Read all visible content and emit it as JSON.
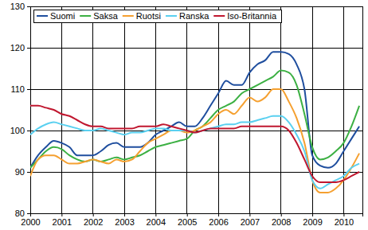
{
  "chart_data": {
    "type": "line",
    "x": [
      2000,
      2000.25,
      2000.5,
      2000.75,
      2001,
      2001.25,
      2001.5,
      2001.75,
      2002,
      2002.25,
      2002.5,
      2002.75,
      2003,
      2003.25,
      2003.5,
      2003.75,
      2004,
      2004.25,
      2004.5,
      2004.75,
      2005,
      2005.25,
      2005.5,
      2005.75,
      2006,
      2006.25,
      2006.5,
      2006.75,
      2007,
      2007.25,
      2007.5,
      2007.75,
      2008,
      2008.25,
      2008.5,
      2008.75,
      2009,
      2009.25,
      2009.5,
      2009.75,
      2010,
      2010.25,
      2010.5
    ],
    "series": [
      {
        "name": "Suomi",
        "color": "#1f4e9e",
        "values": [
          91,
          94,
          96,
          97.5,
          97,
          96,
          94,
          94,
          94,
          95,
          96.5,
          97,
          96,
          96,
          96,
          97,
          99,
          100,
          101,
          102,
          101,
          101,
          103,
          106,
          109,
          112,
          111,
          111,
          114,
          116,
          117,
          119,
          119,
          118.5,
          116,
          110,
          94,
          91.5,
          91,
          92,
          95,
          98,
          101
        ]
      },
      {
        "name": "Saksa",
        "color": "#3cb043",
        "values": [
          91,
          93,
          95,
          96,
          95.5,
          94,
          93,
          92.5,
          93,
          92.5,
          93,
          93.5,
          93,
          93.5,
          94,
          95,
          96,
          96.5,
          97,
          97.5,
          98,
          100,
          101,
          103,
          105,
          106,
          107,
          109,
          110,
          111,
          112,
          113,
          114.5,
          114,
          111,
          104,
          96,
          93,
          93.5,
          95,
          97,
          101,
          106
        ]
      },
      {
        "name": "Ruotsi",
        "color": "#f5a030",
        "values": [
          89,
          93,
          94,
          94,
          93,
          92,
          92,
          92.5,
          93,
          92.5,
          92,
          93,
          92.5,
          93,
          95,
          97,
          98,
          99,
          100,
          100,
          99.5,
          100,
          101,
          102,
          104,
          105,
          104,
          106,
          108,
          107,
          108,
          110,
          110,
          107,
          103,
          97,
          88,
          85,
          85,
          86,
          88,
          91,
          94.5
        ]
      },
      {
        "name": "Ranska",
        "color": "#5ad0f0",
        "values": [
          99,
          100.5,
          101.5,
          102,
          101.5,
          101,
          100.5,
          100,
          100,
          100.5,
          100,
          99.5,
          99,
          99.5,
          99.5,
          100,
          100.5,
          100.5,
          100,
          100,
          100,
          99.5,
          100,
          100.5,
          101,
          101.5,
          101.5,
          102,
          102,
          102.5,
          103,
          103.5,
          103.5,
          102,
          99,
          95,
          88,
          86,
          87,
          88,
          89,
          91,
          92
        ]
      },
      {
        "name": "Iso-Britannia",
        "color": "#c0172f",
        "values": [
          106,
          106,
          105.5,
          105,
          104,
          103.5,
          102.5,
          101.5,
          101,
          101,
          100.5,
          100.5,
          100.5,
          100.5,
          101,
          101,
          101,
          101.5,
          101,
          100.5,
          100,
          99.5,
          100,
          100.5,
          100.5,
          100.5,
          100.5,
          101,
          101,
          101,
          101,
          101,
          101,
          100,
          97,
          93,
          89,
          87.5,
          87.5,
          87.5,
          88,
          89,
          90
        ]
      }
    ],
    "xlim": [
      2000,
      2010.6
    ],
    "xticks": [
      2000,
      2001,
      2002,
      2003,
      2004,
      2005,
      2006,
      2007,
      2008,
      2009,
      2010
    ],
    "ylim": [
      80,
      130
    ],
    "yticks": [
      80,
      90,
      100,
      110,
      120,
      130
    ],
    "grid": true,
    "legend": "top-left"
  }
}
